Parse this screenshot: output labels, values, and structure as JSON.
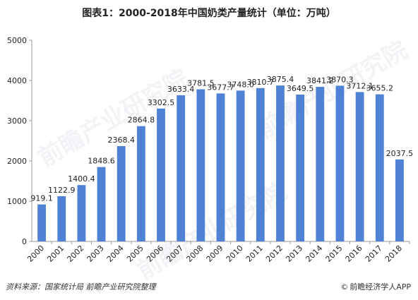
{
  "title": "图表1：2000-2018年中国奶类产量统计（单位：万吨）",
  "source": "资料来源：国家统计局  前瞻产业研究院整理",
  "brand": "前瞻经济学人APP",
  "brand_icon": "copyright-icon",
  "watermark": "前瞻产业研究院",
  "colors": {
    "bar": "#4F81D5",
    "axis": "#999999",
    "text": "#222222"
  },
  "chart_data": {
    "type": "bar",
    "title": "图表1：2000-2018年中国奶类产量统计（单位：万吨）",
    "categories": [
      "2000",
      "2001",
      "2002",
      "2003",
      "2004",
      "2005",
      "2006",
      "2007",
      "2008",
      "2009",
      "2010",
      "2011",
      "2012",
      "2013",
      "2014",
      "2015",
      "2016",
      "2017",
      "2018"
    ],
    "values": [
      919.1,
      1122.9,
      1400.4,
      1848.6,
      2368.4,
      2864.8,
      3302.5,
      3633.4,
      3781.5,
      3677.7,
      3748.0,
      3810.7,
      3875.4,
      3649.5,
      3841.2,
      3870.3,
      3712.1,
      3655.2,
      2037.5
    ],
    "value_labels": [
      "919.1",
      "1122.9",
      "1400.4",
      "1848.6",
      "2368.4",
      "2864.8",
      "3302.5",
      "3633.4",
      "3781.5",
      "3677.7",
      "3748.0",
      "3810.7",
      "3875.4",
      "3649.5",
      "3841.2",
      "3870.3",
      "3712.1",
      "3655.2",
      "2037.5"
    ],
    "xlabel": "",
    "ylabel": "",
    "ylim": [
      0,
      5000
    ],
    "yticks": [
      0,
      1000,
      2000,
      3000,
      4000,
      5000
    ],
    "grid": false,
    "legend": "none"
  }
}
